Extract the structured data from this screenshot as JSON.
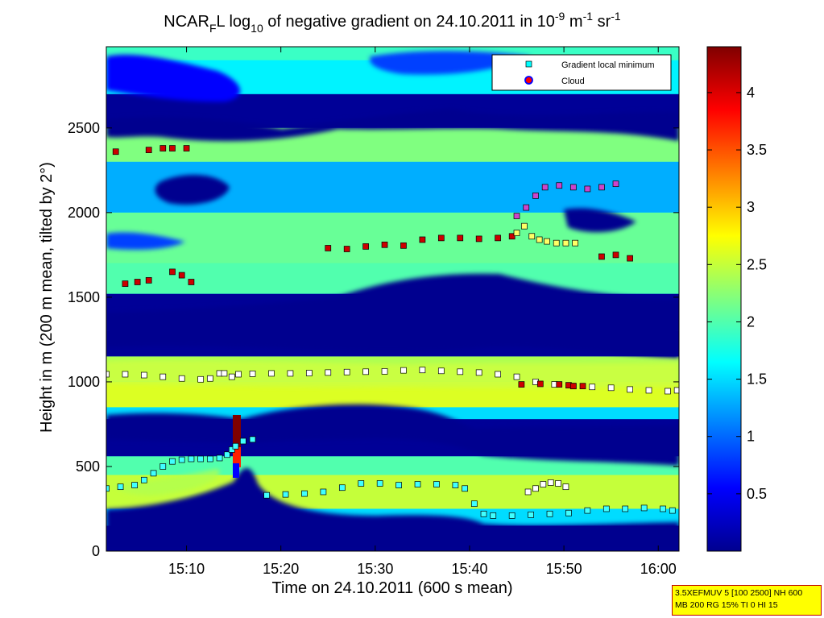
{
  "chart_data": {
    "type": "heatmap",
    "title": {
      "prefix": "NCAR",
      "prefix_sub": "F",
      "part1": "L log",
      "log_sub": "10",
      "part2": " of negative gradient on 24.10.2011 in 10",
      "exp1": "-9",
      "part3": " m",
      "exp2": "-1",
      "part4": " sr",
      "exp3": "-1"
    },
    "xlabel": "Time on 24.10.2011 (600 s mean)",
    "ylabel": "Height in m (200 m mean, tilted by 2°)",
    "x_ticks": [
      "15:10",
      "15:20",
      "15:30",
      "15:40",
      "15:50",
      "16:00"
    ],
    "x_tick_minutes": [
      910,
      920,
      930,
      940,
      950,
      960
    ],
    "xlim_minutes": [
      901.5,
      962.2
    ],
    "y_ticks": [
      0,
      500,
      1000,
      1500,
      2000,
      2500
    ],
    "ylim": [
      0,
      2980
    ],
    "colorbar": {
      "ticks": [
        "0.5",
        "1",
        "1.5",
        "2",
        "2.5",
        "3",
        "3.5",
        "4"
      ],
      "tick_values": [
        0.5,
        1,
        1.5,
        2,
        2.5,
        3,
        3.5,
        4
      ],
      "range": [
        0,
        4.4
      ],
      "colormap": "jet"
    },
    "legend": {
      "placement": "top-right",
      "entries": [
        {
          "label": "Gradient local minimum",
          "color": "#00ffff",
          "marker": "square"
        },
        {
          "label": "Cloud",
          "color": "#ff0000",
          "edge": "#0000ff",
          "marker": "circle"
        }
      ]
    },
    "info_lines": [
      "3.5XEFMUV 5 [100 2500] NH 600",
      "MB 200 RG 15% TI 0 HI 15"
    ],
    "value_field_bands": [
      {
        "from": 2900,
        "to": 2980,
        "value": 1.9
      },
      {
        "from": 2700,
        "to": 2900,
        "value": 1.6
      },
      {
        "from": 2500,
        "to": 2700,
        "value": 0.1
      },
      {
        "from": 2300,
        "to": 2500,
        "value": 2.2
      },
      {
        "from": 2000,
        "to": 2300,
        "value": 1.3
      },
      {
        "from": 1700,
        "to": 2000,
        "value": 2.1
      },
      {
        "from": 1520,
        "to": 1700,
        "value": 2.0
      },
      {
        "from": 1300,
        "to": 1520,
        "value": 0.1
      },
      {
        "from": 1150,
        "to": 1300,
        "value": 0.1
      },
      {
        "from": 1000,
        "to": 1150,
        "value": 2.4
      },
      {
        "from": 850,
        "to": 1000,
        "value": 2.6
      },
      {
        "from": 780,
        "to": 850,
        "value": 1.5
      },
      {
        "from": 560,
        "to": 780,
        "value": 0.1
      },
      {
        "from": 450,
        "to": 560,
        "value": 2.0
      },
      {
        "from": 250,
        "to": 450,
        "value": 2.5
      },
      {
        "from": 150,
        "to": 250,
        "value": 1.5
      },
      {
        "from": 0,
        "to": 150,
        "value": 0.1
      }
    ],
    "series": [
      {
        "name": "Gradient local minimum",
        "color": "#ffffff",
        "x": [
          901.5,
          903.5,
          905.5,
          907.5,
          909.5,
          911.5,
          912.5,
          913.5,
          914.0,
          914.8,
          915.5,
          917,
          919,
          921,
          923,
          925,
          927,
          929,
          931,
          933,
          935,
          937,
          939,
          941,
          943,
          945,
          947,
          949,
          951,
          953,
          955,
          957,
          959,
          961,
          962
        ],
        "y": [
          1045,
          1045,
          1040,
          1030,
          1020,
          1015,
          1020,
          1050,
          1050,
          1030,
          1045,
          1048,
          1050,
          1050,
          1052,
          1055,
          1058,
          1060,
          1062,
          1068,
          1070,
          1065,
          1060,
          1055,
          1045,
          1030,
          1000,
          985,
          975,
          970,
          965,
          955,
          950,
          945,
          950
        ]
      },
      {
        "name": "Gradient local minimum",
        "color": "#40ffff",
        "x": [
          901.5,
          903.0,
          904.5,
          905.5,
          906.5,
          907.5,
          908.5,
          909.5,
          910.5,
          911.5,
          912.5,
          913.5,
          914.3,
          914.8,
          915.2,
          916.0,
          917.0
        ],
        "y": [
          370,
          380,
          390,
          420,
          460,
          500,
          530,
          540,
          545,
          545,
          545,
          550,
          570,
          600,
          620,
          650,
          660
        ]
      },
      {
        "name": "Gradient local minimum",
        "color": "#40ffff",
        "x": [
          918.5,
          920.5,
          922.5,
          924.5,
          926.5,
          928.5,
          930.5,
          932.5,
          934.5,
          936.5,
          938.5,
          939.5,
          940.5,
          941.5,
          942.5,
          944.5,
          946.5,
          948.5,
          950.5,
          952.5,
          954.5,
          956.5,
          958.5,
          960.5,
          961.5
        ],
        "y": [
          330,
          335,
          340,
          350,
          375,
          400,
          400,
          390,
          395,
          395,
          390,
          370,
          280,
          220,
          210,
          210,
          215,
          220,
          225,
          240,
          250,
          250,
          255,
          250,
          240
        ]
      },
      {
        "name": "Gradient local minimum",
        "color": "#ffffff",
        "x": [
          946.2,
          947.0,
          947.8,
          948.6,
          949.4,
          950.2
        ],
        "y": [
          350,
          370,
          395,
          405,
          400,
          380
        ]
      },
      {
        "name": "Cloud",
        "color": "#cc0000",
        "x": [
          925,
          927,
          929,
          931,
          933,
          935,
          937,
          939,
          941,
          943,
          944.5
        ],
        "y": [
          1790,
          1785,
          1800,
          1810,
          1805,
          1840,
          1850,
          1850,
          1845,
          1850,
          1860
        ]
      },
      {
        "name": "Cloud",
        "color": "#cc0000",
        "x": [
          903.5,
          904.8,
          906.0,
          908.5,
          909.5,
          910.5
        ],
        "y": [
          1580,
          1590,
          1600,
          1650,
          1630,
          1590
        ]
      },
      {
        "name": "Cloud",
        "color": "#cc0000",
        "x": [
          902.5,
          906.0,
          907.5,
          908.5,
          910.0
        ],
        "y": [
          2360,
          2370,
          2380,
          2380,
          2380
        ]
      },
      {
        "name": "Gradient local minimum",
        "color": "#ffff66",
        "x": [
          945.0,
          945.8,
          946.6,
          947.4,
          948.2,
          949.2,
          950.2,
          951.2
        ],
        "y": [
          1880,
          1920,
          1860,
          1840,
          1830,
          1820,
          1820,
          1820
        ]
      },
      {
        "name": "Gradient local minimum",
        "color": "#cc44cc",
        "x": [
          945.0,
          946.0,
          947.0,
          948.0,
          949.5,
          951.0,
          952.5,
          954.0,
          955.5
        ],
        "y": [
          1980,
          2030,
          2100,
          2150,
          2160,
          2150,
          2140,
          2150,
          2170
        ]
      },
      {
        "name": "Cloud",
        "color": "#cc0000",
        "x": [
          954.0,
          955.5,
          957.0
        ],
        "y": [
          1740,
          1750,
          1730
        ]
      },
      {
        "name": "Cloud",
        "color": "#cc0000",
        "x": [
          945.5,
          947.5,
          949.5,
          950.5,
          951.0,
          952.0
        ],
        "y": [
          985,
          988,
          985,
          980,
          975,
          975
        ]
      }
    ]
  }
}
